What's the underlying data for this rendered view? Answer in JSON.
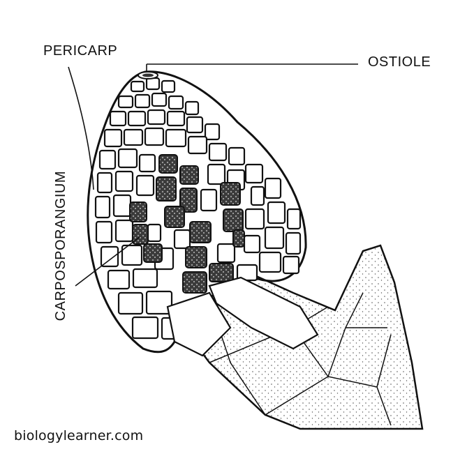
{
  "diagram": {
    "labels": {
      "pericarp": "PERICARP",
      "ostiole": "OSTIOLE",
      "carposporangium": "CARPOSPORANGIUM"
    },
    "credit": "biologylearner.com"
  },
  "colors": {
    "ink": "#111111",
    "carpospore_fill": "#2e2e2e",
    "stipple": "#555555",
    "background": "#ffffff"
  }
}
